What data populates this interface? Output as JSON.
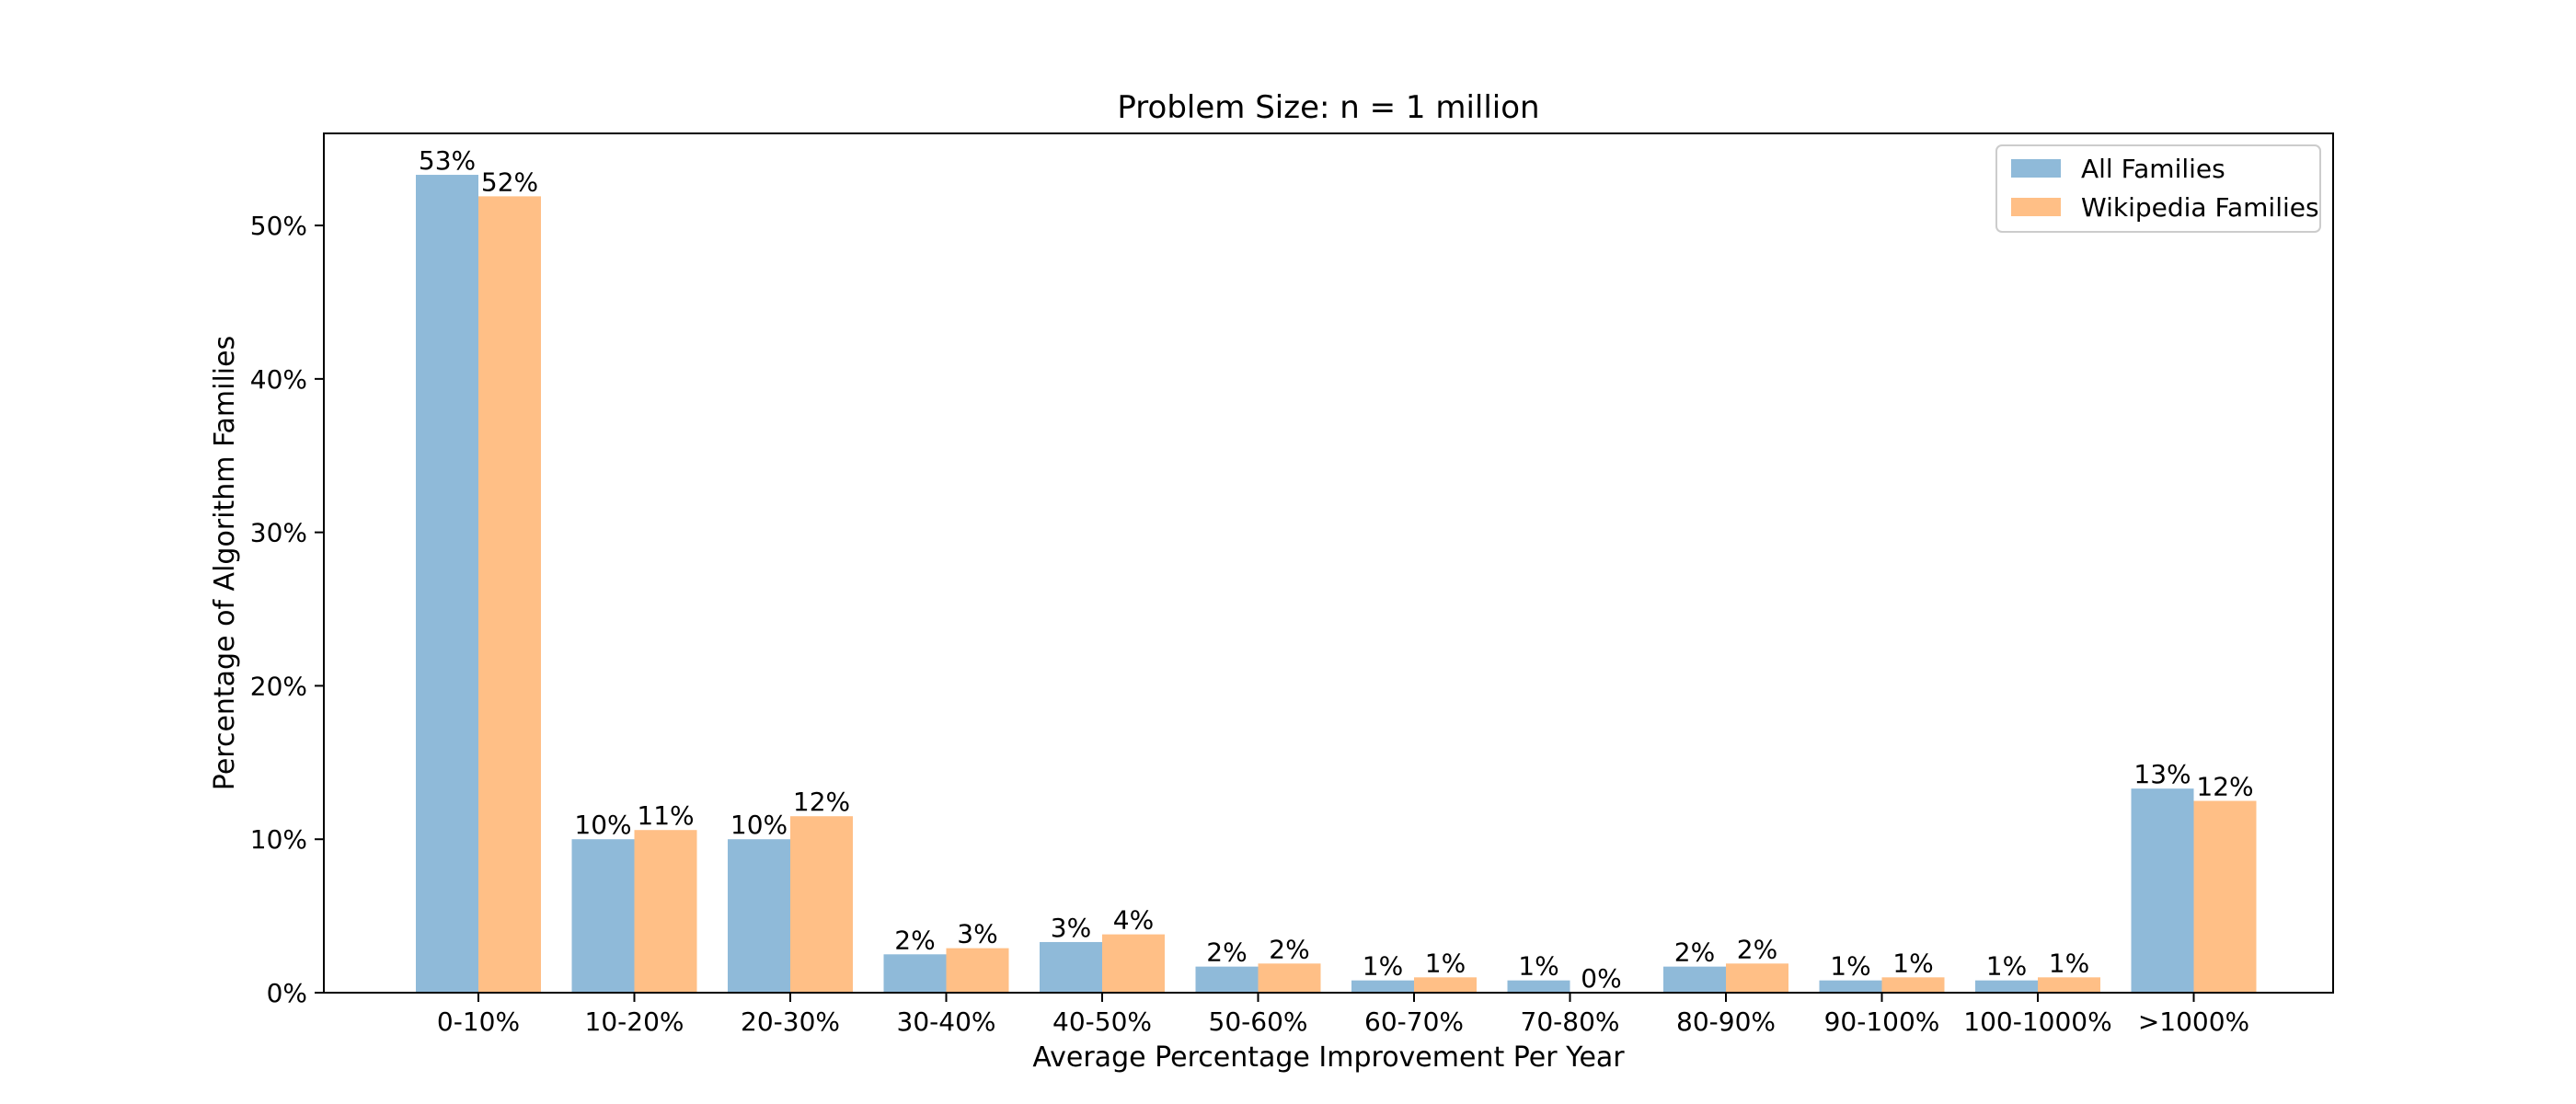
{
  "chart_data": {
    "type": "bar",
    "title": "Problem Size: n = 1 million",
    "xlabel": "Average Percentage Improvement Per Year",
    "ylabel": "Percentage of Algorithm Families",
    "categories": [
      "0-10%",
      "10-20%",
      "20-30%",
      "30-40%",
      "40-50%",
      "50-60%",
      "60-70%",
      "70-80%",
      "80-90%",
      "90-100%",
      "100-1000%",
      ">1000%"
    ],
    "series": [
      {
        "name": "All Families",
        "color": "#8fbad9",
        "values": [
          53.3,
          10.0,
          10.0,
          2.5,
          3.3,
          1.7,
          0.8,
          0.8,
          1.7,
          0.8,
          0.8,
          13.3
        ],
        "labels": [
          "53%",
          "10%",
          "10%",
          "2%",
          "3%",
          "2%",
          "1%",
          "1%",
          "2%",
          "1%",
          "1%",
          "13%"
        ]
      },
      {
        "name": "Wikipedia Families",
        "color": "#ffbf86",
        "values": [
          51.9,
          10.6,
          11.5,
          2.9,
          3.8,
          1.9,
          1.0,
          0.0,
          1.9,
          1.0,
          1.0,
          12.5
        ],
        "labels": [
          "52%",
          "11%",
          "12%",
          "3%",
          "4%",
          "2%",
          "1%",
          "0%",
          "2%",
          "1%",
          "1%",
          "12%"
        ]
      }
    ],
    "ylim": [
      0,
      56
    ],
    "yticks": [
      0,
      10,
      20,
      30,
      40,
      50
    ],
    "ytick_labels": [
      "0%",
      "10%",
      "20%",
      "30%",
      "40%",
      "50%"
    ],
    "grid": false,
    "legend_position": "top-right"
  }
}
